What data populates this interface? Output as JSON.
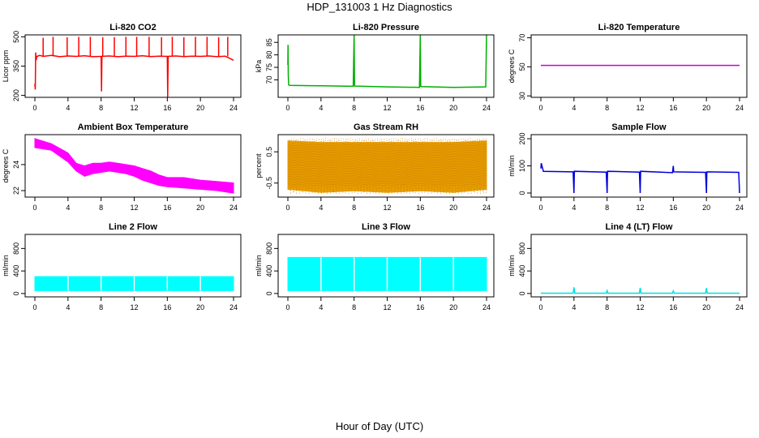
{
  "page": {
    "title": "HDP_131003  1 Hz Diagnostics",
    "xaxis_title": "Hour of Day (UTC)"
  },
  "chart_data": [
    {
      "id": "co2",
      "type": "line",
      "title": "Li-820 CO2",
      "ylabel": "Licor ppm",
      "color": "#ff0000",
      "xlim": [
        0,
        24
      ],
      "xticks": [
        0,
        4,
        8,
        12,
        16,
        20,
        24
      ],
      "ylim": [
        190,
        510
      ],
      "yticks": [
        200,
        350,
        500
      ],
      "series": [
        {
          "x": [
            0,
            0.05,
            0.1,
            0.15,
            0.25,
            0.6,
            1,
            2,
            3,
            4,
            5,
            6,
            7,
            8,
            8.05,
            8.1,
            9,
            10,
            11,
            12,
            13,
            14,
            15,
            16,
            16.05,
            16.1,
            17,
            18,
            19,
            20,
            21,
            22,
            23,
            24
          ],
          "y": [
            260,
            230,
            420,
            380,
            400,
            405,
            400,
            405,
            398,
            402,
            400,
            403,
            398,
            400,
            220,
            400,
            402,
            398,
            401,
            400,
            403,
            399,
            401,
            400,
            190,
            400,
            402,
            399,
            401,
            400,
            402,
            398,
            401,
            380
          ]
        }
      ],
      "spikes": [
        {
          "x": 1.0,
          "y": 495
        },
        {
          "x": 2.2,
          "y": 500
        },
        {
          "x": 3.9,
          "y": 498
        },
        {
          "x": 5.3,
          "y": 500
        },
        {
          "x": 6.7,
          "y": 500
        },
        {
          "x": 8.2,
          "y": 498
        },
        {
          "x": 9.6,
          "y": 498
        },
        {
          "x": 11.0,
          "y": 500
        },
        {
          "x": 12.3,
          "y": 500
        },
        {
          "x": 13.8,
          "y": 500
        },
        {
          "x": 15.3,
          "y": 498
        },
        {
          "x": 16.6,
          "y": 500
        },
        {
          "x": 18.0,
          "y": 498
        },
        {
          "x": 19.4,
          "y": 500
        },
        {
          "x": 20.8,
          "y": 500
        },
        {
          "x": 22.2,
          "y": 498
        },
        {
          "x": 23.3,
          "y": 500
        }
      ]
    },
    {
      "id": "pressure",
      "type": "line",
      "title": "Li-820 Pressure",
      "ylabel": "kPa",
      "color": "#00b000",
      "xlim": [
        0,
        24
      ],
      "xticks": [
        0,
        4,
        8,
        12,
        16,
        20,
        24
      ],
      "ylim": [
        63,
        88
      ],
      "yticks": [
        70,
        75,
        80,
        85
      ],
      "series": [
        {
          "x": [
            0,
            0.02,
            0.05,
            0.1,
            0.2,
            4,
            7.9,
            8,
            8.05,
            8.1,
            12,
            15.9,
            16,
            16.05,
            16.1,
            20,
            23.9,
            24,
            24.05
          ],
          "y": [
            76,
            84,
            72,
            68,
            67.8,
            67.6,
            67.4,
            88,
            67.6,
            67.5,
            67.2,
            67.0,
            88,
            67.4,
            67.3,
            67.0,
            67.2,
            88,
            88
          ]
        }
      ]
    },
    {
      "id": "licor_temp",
      "type": "line",
      "title": "Li-820 Temperature",
      "ylabel": "degrees C",
      "color": "#cc00cc",
      "xlim": [
        0,
        24
      ],
      "xticks": [
        0,
        4,
        8,
        12,
        16,
        20,
        24
      ],
      "ylim": [
        29,
        72
      ],
      "yticks": [
        30,
        50,
        70
      ],
      "series": [
        {
          "x": [
            0,
            24
          ],
          "y": [
            51,
            51
          ]
        }
      ]
    },
    {
      "id": "box_temp",
      "type": "area",
      "title": "Ambient Box Temperature",
      "ylabel": "degrees C",
      "color": "#ff00ff",
      "xlim": [
        0,
        24
      ],
      "xticks": [
        0,
        4,
        8,
        12,
        16,
        20,
        24
      ],
      "ylim": [
        21.5,
        26.3
      ],
      "yticks": [
        22,
        24
      ],
      "series": [
        {
          "x": [
            0,
            2,
            4,
            5,
            6,
            7,
            8,
            9,
            10,
            11,
            12,
            13,
            14,
            15,
            16,
            18,
            20,
            22,
            24
          ],
          "upper": [
            26.0,
            25.6,
            24.9,
            24.1,
            23.9,
            24.1,
            24.1,
            24.2,
            24.1,
            24.0,
            23.9,
            23.7,
            23.5,
            23.2,
            23.0,
            23.0,
            22.8,
            22.7,
            22.6
          ],
          "lower": [
            25.3,
            25.1,
            24.2,
            23.5,
            23.1,
            23.3,
            23.4,
            23.5,
            23.4,
            23.3,
            23.1,
            22.8,
            22.6,
            22.4,
            22.3,
            22.2,
            22.1,
            22.0,
            21.8
          ]
        }
      ]
    },
    {
      "id": "rh",
      "type": "area",
      "title": "Gas Stream RH",
      "ylabel": "percent",
      "color": "#e8a000",
      "xlim": [
        0,
        24
      ],
      "xticks": [
        0,
        4,
        8,
        12,
        16,
        20,
        24
      ],
      "ylim": [
        -0.95,
        1.05
      ],
      "yticks": [
        -0.5,
        0.5
      ],
      "series": [
        {
          "x": [
            0,
            4,
            8,
            12,
            16,
            20,
            24
          ],
          "upper": [
            0.85,
            0.8,
            0.8,
            0.8,
            0.8,
            0.8,
            0.85
          ],
          "lower": [
            -0.7,
            -0.8,
            -0.75,
            -0.8,
            -0.75,
            -0.8,
            -0.7
          ]
        }
      ]
    },
    {
      "id": "sample_flow",
      "type": "line",
      "title": "Sample Flow",
      "ylabel": "ml/min",
      "color": "#0000dd",
      "xlim": [
        0,
        24
      ],
      "xticks": [
        0,
        4,
        8,
        12,
        16,
        20,
        24
      ],
      "ylim": [
        -15,
        215
      ],
      "yticks": [
        0,
        100,
        200
      ],
      "series": [
        {
          "x": [
            0,
            0.05,
            0.3,
            3.9,
            4,
            4.05,
            7.9,
            8,
            8.05,
            11.9,
            12,
            12.05,
            15.9,
            16,
            16.05,
            19.9,
            20,
            20.05,
            23.9,
            24
          ],
          "y": [
            90,
            110,
            80,
            78,
            0,
            80,
            77,
            0,
            80,
            77,
            0,
            80,
            75,
            100,
            78,
            76,
            0,
            78,
            76,
            0
          ]
        }
      ]
    },
    {
      "id": "line2",
      "type": "area",
      "title": "Line 2 Flow",
      "ylabel": "ml/min",
      "color": "#00ffff",
      "xlim": [
        0,
        24
      ],
      "xticks": [
        0,
        4,
        8,
        12,
        16,
        20,
        24
      ],
      "ylim": [
        -60,
        1050
      ],
      "yticks": [
        0,
        400,
        800
      ],
      "series": [
        {
          "x": [
            0,
            24
          ],
          "upper": [
            300,
            300
          ],
          "lower": [
            50,
            50
          ]
        }
      ]
    },
    {
      "id": "line3",
      "type": "area",
      "title": "Line 3 Flow",
      "ylabel": "ml/min",
      "color": "#00ffff",
      "xlim": [
        0,
        24
      ],
      "xticks": [
        0,
        4,
        8,
        12,
        16,
        20,
        24
      ],
      "ylim": [
        -60,
        1050
      ],
      "yticks": [
        0,
        400,
        800
      ],
      "series": [
        {
          "x": [
            0,
            24
          ],
          "upper": [
            640,
            640
          ],
          "lower": [
            50,
            50
          ]
        }
      ]
    },
    {
      "id": "line4",
      "type": "line",
      "title": "Line 4 (LT) Flow",
      "ylabel": "ml/min",
      "color": "#00e0e0",
      "xlim": [
        0,
        24
      ],
      "xticks": [
        0,
        4,
        8,
        12,
        16,
        20,
        24
      ],
      "ylim": [
        -60,
        1050
      ],
      "yticks": [
        0,
        400,
        800
      ],
      "series": [
        {
          "x": [
            0,
            3.9,
            4,
            4.1,
            7.9,
            8,
            8.1,
            11.9,
            12,
            12.1,
            15.9,
            16,
            16.1,
            19.9,
            20,
            20.1,
            24
          ],
          "y": [
            5,
            5,
            110,
            5,
            5,
            50,
            5,
            5,
            100,
            5,
            5,
            45,
            5,
            5,
            95,
            5,
            5
          ]
        }
      ]
    }
  ]
}
